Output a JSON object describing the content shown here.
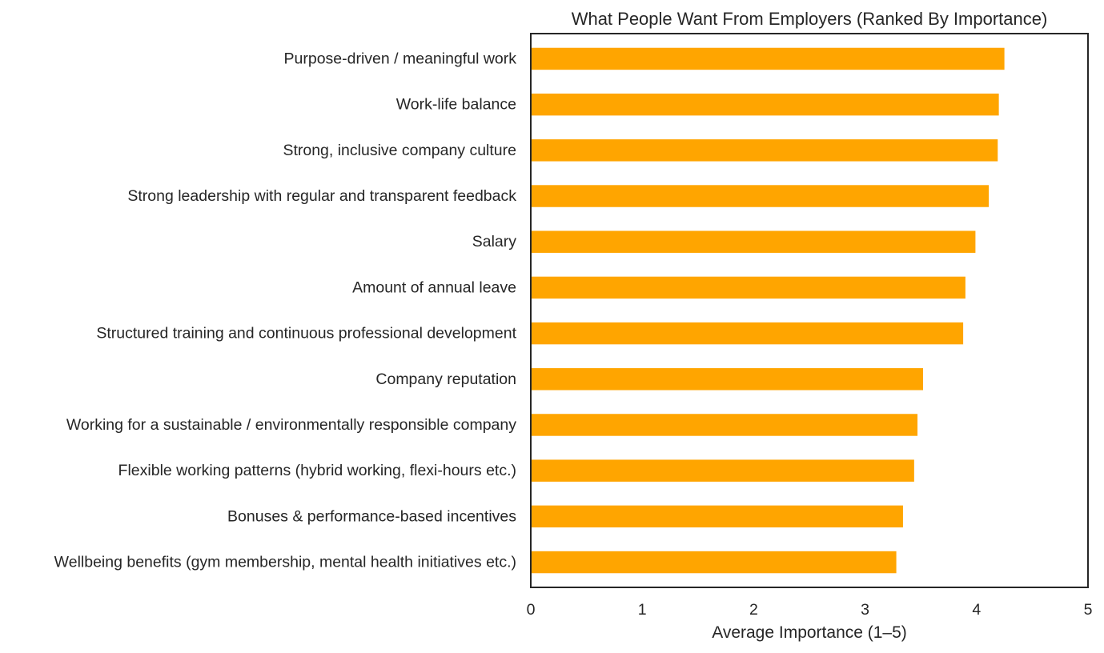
{
  "chart_data": {
    "type": "bar",
    "orientation": "horizontal",
    "title": "What People Want From Employers (Ranked By Importance)",
    "xlabel": "Average Importance (1–5)",
    "ylabel": "",
    "xlim": [
      0,
      5
    ],
    "xticks": [
      "0",
      "1",
      "2",
      "3",
      "4",
      "5"
    ],
    "grid": false,
    "legend": "none",
    "bar_color": "#FFA500",
    "categories": [
      "Purpose-driven / meaningful work",
      "Work-life balance",
      "Strong, inclusive company culture",
      "Strong leadership with regular and transparent feedback",
      "Salary",
      "Amount of annual leave",
      "Structured training and continuous professional development",
      "Company reputation",
      "Working for a sustainable / environmentally responsible company",
      "Flexible working patterns (hybrid working, flexi-hours etc.)",
      "Bonuses & performance-based incentives",
      "Wellbeing benefits (gym membership, mental health initiatives etc.)"
    ],
    "values": [
      4.25,
      4.2,
      4.19,
      4.11,
      3.99,
      3.9,
      3.88,
      3.52,
      3.47,
      3.44,
      3.34,
      3.28
    ]
  }
}
